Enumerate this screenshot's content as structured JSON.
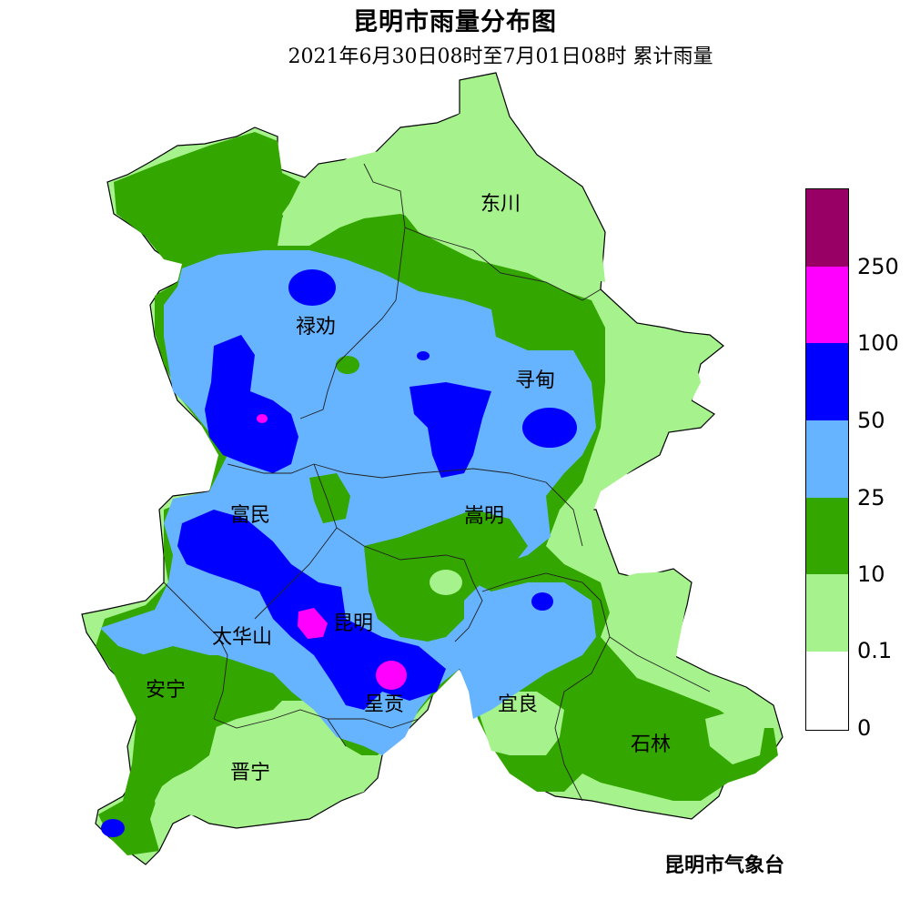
{
  "title": "昆明市雨量分布图",
  "subtitle": "2021年6月30日08时至7月01日08时 累计雨量",
  "credit": "昆明市气象台",
  "places": {
    "dongchuan": "东川",
    "luquan": "禄劝",
    "xundian": "寻甸",
    "fumin": "富民",
    "songming": "嵩明",
    "kunming": "昆明",
    "taihuashan": "太华山",
    "anning": "安宁",
    "chenggong": "呈贡",
    "yiliang": "宜良",
    "jinning": "晋宁",
    "shilin": "石林"
  },
  "legend": {
    "labels": [
      "250",
      "100",
      "50",
      "25",
      "10",
      "0.1",
      "0"
    ],
    "colors": [
      "#990066",
      "#ff00ff",
      "#0000ff",
      "#66b3ff",
      "#33a600",
      "#a6f28c",
      "#ffffff"
    ]
  }
}
